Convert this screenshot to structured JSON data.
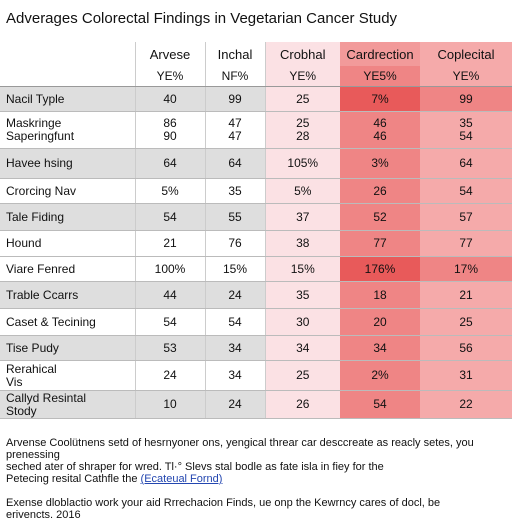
{
  "header": {
    "title": "Adverages Colorectal Findings in Vegetarian Cancer Study"
  },
  "table": {
    "columns": [
      "Arvese",
      "Inchal",
      "Crobhal",
      "Cardrection",
      "Coplecital"
    ],
    "units": [
      "YE%",
      "NF%",
      "YE%",
      "YE5%",
      "YE%"
    ],
    "rows": [
      {
        "label": [
          "Nacil Typle"
        ],
        "cells": [
          [
            "40"
          ],
          [
            "99"
          ],
          [
            "25"
          ],
          [
            "7%"
          ],
          [
            "99"
          ]
        ]
      },
      {
        "label": [
          "Maskringe",
          "Saperingfunt"
        ],
        "cells": [
          [
            "86",
            "90"
          ],
          [
            "47",
            "47"
          ],
          [
            "25",
            "28"
          ],
          [
            "46",
            "46"
          ],
          [
            "35",
            "54"
          ]
        ]
      },
      {
        "label": [
          "Havee hsing"
        ],
        "cells": [
          [
            "64"
          ],
          [
            "64"
          ],
          [
            "105%"
          ],
          [
            "3%"
          ],
          [
            "64"
          ]
        ]
      },
      {
        "label": [
          "Crorcing Nav"
        ],
        "cells": [
          [
            "5%"
          ],
          [
            "35"
          ],
          [
            "5%"
          ],
          [
            "26"
          ],
          [
            "54"
          ]
        ]
      },
      {
        "label": [
          "Tale Fiding"
        ],
        "cells": [
          [
            "54"
          ],
          [
            "55"
          ],
          [
            "37"
          ],
          [
            "52"
          ],
          [
            "57"
          ]
        ]
      },
      {
        "label": [
          "Hound"
        ],
        "cells": [
          [
            "21"
          ],
          [
            "76"
          ],
          [
            "38"
          ],
          [
            "77"
          ],
          [
            "77"
          ]
        ]
      },
      {
        "label": [
          "Viare Fenred"
        ],
        "cells": [
          [
            "100%"
          ],
          [
            "15%"
          ],
          [
            "15%"
          ],
          [
            "176%"
          ],
          [
            "17%"
          ]
        ]
      },
      {
        "label": [
          "Trable Ccarrs"
        ],
        "cells": [
          [
            "44"
          ],
          [
            "24"
          ],
          [
            "35"
          ],
          [
            "18"
          ],
          [
            "21"
          ]
        ]
      },
      {
        "label": [
          "Caset & Tecining"
        ],
        "cells": [
          [
            "54"
          ],
          [
            "54"
          ],
          [
            "30"
          ],
          [
            "20"
          ],
          [
            "25"
          ]
        ]
      },
      {
        "label": [
          "Tise Pudy"
        ],
        "cells": [
          [
            "53"
          ],
          [
            "34"
          ],
          [
            "34"
          ],
          [
            "34"
          ],
          [
            "56"
          ]
        ]
      },
      {
        "label": [
          "Rerahical",
          "Vis"
        ],
        "cells": [
          [
            "24"
          ],
          [
            "34"
          ],
          [
            "25"
          ],
          [
            "2%"
          ],
          [
            "31"
          ]
        ]
      },
      {
        "label": [
          "Callyd Resintal",
          "Stody"
        ],
        "cells": [
          [
            "10"
          ],
          [
            "24"
          ],
          [
            "26"
          ],
          [
            "54"
          ],
          [
            "22"
          ]
        ]
      }
    ]
  },
  "footer": {
    "note": [
      "Arvense Coolütnens setd of hesrnyoner ons, yengical threar car desccreate as reacly setes, you prenessing",
      "seched ater of shraper for wred. Tl·° Slevs stal bodle as fate isla in fiey for the",
      "Petecing resital Cathfle the"
    ],
    "link": "(Ecateual Fornd)",
    "source": [
      "Exense dloblactio work your aid Rrrechacion Finds, ue onp the Kewrncy cares of docl, be",
      "erivencts. 2016"
    ]
  }
}
